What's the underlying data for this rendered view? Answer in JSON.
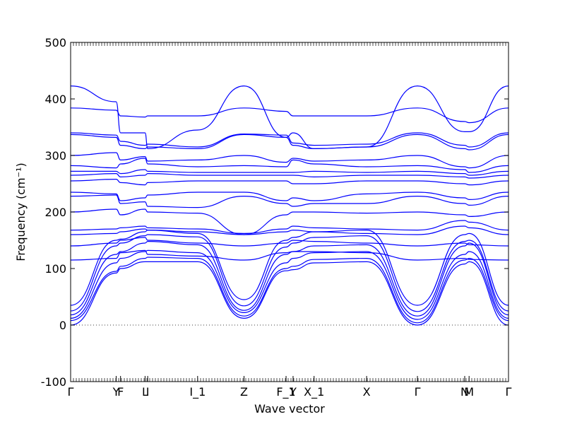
{
  "chart_data": {
    "type": "line",
    "title": "",
    "xlabel": "Wave vector",
    "ylabel": "Frequency (cm⁻¹)",
    "ylim": [
      -100,
      500
    ],
    "yticks": [
      -100,
      0,
      100,
      200,
      300,
      400,
      500
    ],
    "grid": false,
    "line_color": "#0000ff",
    "zero_line_style": "dotted",
    "high_symmetry_points": [
      {
        "label": "Γ",
        "x": 0.0
      },
      {
        "label": "Y",
        "x": 0.52
      },
      {
        "label": "F",
        "x": 0.57
      },
      {
        "label": "L",
        "x": 0.85
      },
      {
        "label": "I",
        "x": 0.88
      },
      {
        "label": "I_1",
        "x": 1.45
      },
      {
        "label": "Z",
        "x": 1.98
      },
      {
        "label": "F_1",
        "x": 2.46
      },
      {
        "label": "Y",
        "x": 2.54
      },
      {
        "label": "X_1",
        "x": 2.78
      },
      {
        "label": "X",
        "x": 3.38
      },
      {
        "label": "Γ",
        "x": 3.96
      },
      {
        "label": "N",
        "x": 4.5
      },
      {
        "label": "M",
        "x": 4.55
      },
      {
        "label": "Γ",
        "x": 5.0
      }
    ],
    "series": [
      {
        "values": [
          0,
          92,
          100,
          112,
          112,
          112,
          12,
          96,
          98,
          110,
          112,
          0,
          108,
          112,
          0
        ]
      },
      {
        "values": [
          8,
          95,
          104,
          118,
          120,
          118,
          16,
          100,
          104,
          116,
          118,
          4,
          115,
          118,
          8
        ]
      },
      {
        "values": [
          12,
          110,
          118,
          130,
          132,
          128,
          22,
          110,
          118,
          128,
          130,
          10,
          125,
          130,
          12
        ]
      },
      {
        "values": [
          18,
          125,
          130,
          145,
          148,
          142,
          26,
          125,
          130,
          140,
          142,
          16,
          140,
          145,
          18
        ]
      },
      {
        "values": [
          25,
          140,
          145,
          158,
          160,
          156,
          34,
          138,
          145,
          155,
          158,
          24,
          148,
          150,
          25
        ]
      },
      {
        "values": [
          35,
          150,
          152,
          165,
          168,
          162,
          45,
          150,
          155,
          165,
          168,
          35,
          160,
          162,
          35
        ]
      },
      {
        "values": [
          115,
          118,
          128,
          132,
          125,
          122,
          115,
          128,
          130,
          130,
          128,
          115,
          118,
          116,
          115
        ]
      },
      {
        "values": [
          140,
          145,
          150,
          155,
          150,
          145,
          140,
          145,
          150,
          148,
          145,
          140,
          145,
          142,
          140
        ]
      },
      {
        "values": [
          160,
          162,
          165,
          170,
          168,
          165,
          160,
          165,
          168,
          165,
          162,
          160,
          175,
          172,
          160
        ]
      },
      {
        "values": [
          168,
          170,
          172,
          175,
          172,
          170,
          162,
          170,
          175,
          172,
          170,
          168,
          185,
          182,
          168
        ]
      },
      {
        "values": [
          200,
          205,
          195,
          205,
          200,
          198,
          160,
          195,
          200,
          200,
          198,
          200,
          195,
          192,
          200
        ]
      },
      {
        "values": [
          228,
          230,
          215,
          218,
          210,
          208,
          228,
          215,
          210,
          215,
          215,
          228,
          215,
          212,
          228
        ]
      },
      {
        "values": [
          235,
          232,
          220,
          225,
          230,
          235,
          235,
          220,
          225,
          220,
          232,
          235,
          225,
          222,
          235
        ]
      },
      {
        "values": [
          255,
          258,
          252,
          248,
          252,
          255,
          255,
          255,
          250,
          250,
          255,
          255,
          250,
          248,
          255
        ]
      },
      {
        "values": [
          265,
          268,
          262,
          265,
          268,
          265,
          265,
          265,
          265,
          262,
          265,
          265,
          262,
          260,
          265
        ]
      },
      {
        "values": [
          272,
          272,
          268,
          275,
          272,
          270,
          270,
          270,
          270,
          272,
          270,
          272,
          268,
          265,
          272
        ]
      },
      {
        "values": [
          282,
          278,
          285,
          295,
          285,
          280,
          282,
          280,
          292,
          285,
          280,
          282,
          275,
          270,
          282
        ]
      },
      {
        "values": [
          300,
          305,
          292,
          298,
          290,
          292,
          300,
          288,
          295,
          290,
          292,
          300,
          280,
          278,
          300
        ]
      },
      {
        "values": [
          337,
          332,
          318,
          312,
          315,
          312,
          337,
          332,
          318,
          312,
          315,
          337,
          312,
          310,
          337
        ]
      },
      {
        "values": [
          340,
          336,
          325,
          318,
          320,
          315,
          338,
          336,
          322,
          318,
          320,
          340,
          318,
          315,
          340
        ]
      },
      {
        "values": [
          384,
          380,
          370,
          368,
          370,
          370,
          384,
          378,
          370,
          370,
          370,
          384,
          360,
          358,
          384
        ]
      },
      {
        "values": [
          423,
          395,
          340,
          340,
          312,
          345,
          423,
          332,
          340,
          312,
          315,
          423,
          342,
          342,
          423
        ]
      }
    ]
  }
}
